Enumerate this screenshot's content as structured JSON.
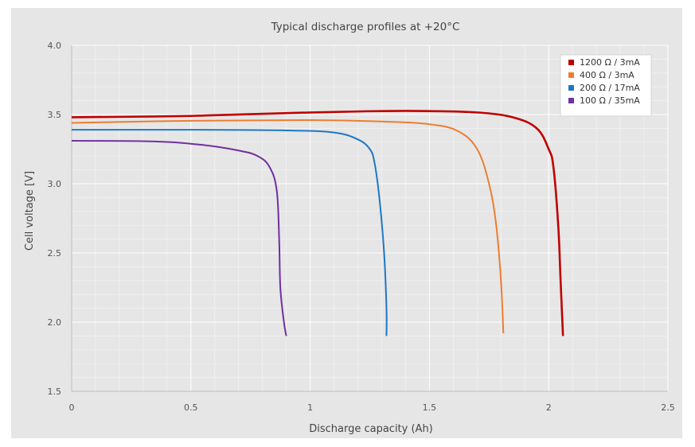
{
  "chart_data": {
    "type": "line",
    "title": "Typical discharge profiles at +20°C",
    "xlabel": "Discharge capacity (Ah)",
    "ylabel": "Cell voltage [V]",
    "xlim": [
      0,
      2.5
    ],
    "ylim": [
      1.5,
      4.0
    ],
    "x_ticks": [
      "0",
      "0.5",
      "1",
      "1.5",
      "2",
      "2.5"
    ],
    "y_ticks": [
      "1.5",
      "2.0",
      "2.5",
      "3.0",
      "3.5",
      "4.0"
    ],
    "grid": true,
    "legend_position": "top-right",
    "series": [
      {
        "name": "1200 Ω / 3mA",
        "color": "#c00000",
        "points": [
          [
            0,
            3.48
          ],
          [
            0.5,
            3.49
          ],
          [
            1.0,
            3.515
          ],
          [
            1.3,
            3.525
          ],
          [
            1.5,
            3.525
          ],
          [
            1.7,
            3.515
          ],
          [
            1.85,
            3.48
          ],
          [
            1.95,
            3.4
          ],
          [
            2.0,
            3.25
          ],
          [
            2.02,
            3.12
          ],
          [
            2.04,
            2.7
          ],
          [
            2.05,
            2.3
          ],
          [
            2.06,
            1.9
          ]
        ]
      },
      {
        "name": "400 Ω / 3mA",
        "color": "#ed7d31",
        "points": [
          [
            0,
            3.44
          ],
          [
            0.5,
            3.455
          ],
          [
            1.0,
            3.46
          ],
          [
            1.3,
            3.45
          ],
          [
            1.5,
            3.43
          ],
          [
            1.62,
            3.38
          ],
          [
            1.7,
            3.25
          ],
          [
            1.75,
            3.0
          ],
          [
            1.78,
            2.7
          ],
          [
            1.8,
            2.3
          ],
          [
            1.81,
            1.92
          ]
        ]
      },
      {
        "name": "200 Ω / 17mA",
        "color": "#1f77c4",
        "points": [
          [
            0,
            3.39
          ],
          [
            0.5,
            3.39
          ],
          [
            0.9,
            3.385
          ],
          [
            1.1,
            3.37
          ],
          [
            1.2,
            3.32
          ],
          [
            1.25,
            3.25
          ],
          [
            1.27,
            3.15
          ],
          [
            1.29,
            2.9
          ],
          [
            1.31,
            2.5
          ],
          [
            1.32,
            2.1
          ],
          [
            1.32,
            1.9
          ]
        ]
      },
      {
        "name": "100 Ω / 35mA",
        "color": "#7030a0",
        "points": [
          [
            0,
            3.31
          ],
          [
            0.35,
            3.305
          ],
          [
            0.55,
            3.28
          ],
          [
            0.7,
            3.24
          ],
          [
            0.78,
            3.2
          ],
          [
            0.83,
            3.12
          ],
          [
            0.86,
            2.95
          ],
          [
            0.87,
            2.6
          ],
          [
            0.875,
            2.25
          ],
          [
            0.89,
            2.0
          ],
          [
            0.9,
            1.9
          ]
        ]
      }
    ]
  }
}
